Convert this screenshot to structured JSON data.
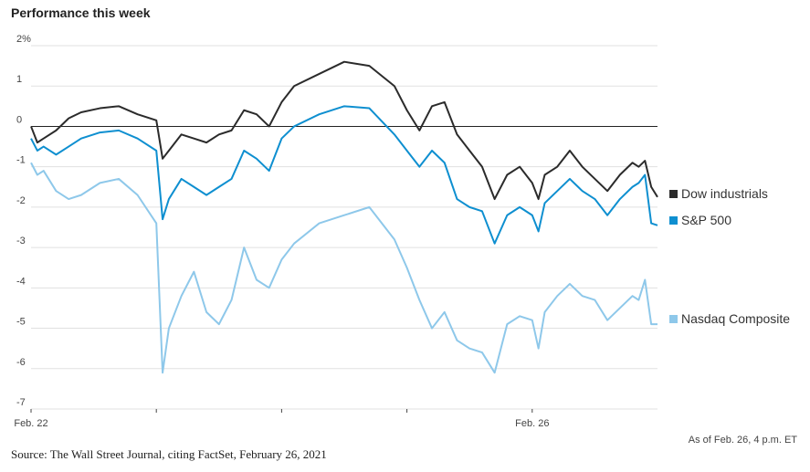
{
  "chart_data": {
    "type": "line",
    "title": "Performance this week",
    "ylim": [
      -7,
      2
    ],
    "yticks": [
      2,
      1,
      0,
      -1,
      -2,
      -3,
      -4,
      -5,
      -6,
      -7
    ],
    "ytick_labels": [
      "2%",
      "1",
      "0",
      "-1",
      "-2",
      "-3",
      "-4",
      "-5",
      "-6",
      "-7"
    ],
    "x_tick_labels": [
      "Feb. 22",
      "Feb. 26"
    ],
    "grid": true,
    "legend_placement": "right, at end of lines",
    "series": [
      {
        "name": "Dow industrials",
        "color": "#2b2b2b",
        "x": [
          0,
          0.05,
          0.1,
          0.2,
          0.3,
          0.4,
          0.55,
          0.7,
          0.85,
          1.0,
          1.05,
          1.1,
          1.2,
          1.3,
          1.4,
          1.5,
          1.6,
          1.7,
          1.8,
          1.9,
          2.0,
          2.1,
          2.3,
          2.5,
          2.7,
          2.9,
          3.0,
          3.1,
          3.2,
          3.3,
          3.4,
          3.5,
          3.6,
          3.7,
          3.8,
          3.9,
          4.0,
          4.05,
          4.1,
          4.2,
          4.3,
          4.4,
          4.5,
          4.6,
          4.7,
          4.8,
          4.85,
          4.9,
          4.95,
          5.0
        ],
        "values": [
          0.0,
          -0.4,
          -0.3,
          -0.1,
          0.2,
          0.35,
          0.45,
          0.5,
          0.3,
          0.15,
          -0.8,
          -0.6,
          -0.2,
          -0.3,
          -0.4,
          -0.2,
          -0.1,
          0.4,
          0.3,
          0.0,
          0.6,
          1.0,
          1.3,
          1.6,
          1.5,
          1.0,
          0.4,
          -0.1,
          0.5,
          0.6,
          -0.2,
          -0.6,
          -1.0,
          -1.8,
          -1.2,
          -1.0,
          -1.4,
          -1.8,
          -1.2,
          -1.0,
          -0.6,
          -1.0,
          -1.3,
          -1.6,
          -1.2,
          -0.9,
          -1.0,
          -0.85,
          -1.5,
          -1.75
        ]
      },
      {
        "name": "S&P 500",
        "color": "#0e8fd0",
        "x": [
          0,
          0.05,
          0.1,
          0.2,
          0.3,
          0.4,
          0.55,
          0.7,
          0.85,
          1.0,
          1.05,
          1.1,
          1.2,
          1.3,
          1.4,
          1.5,
          1.6,
          1.7,
          1.8,
          1.9,
          2.0,
          2.1,
          2.3,
          2.5,
          2.7,
          2.9,
          3.0,
          3.1,
          3.2,
          3.3,
          3.4,
          3.5,
          3.6,
          3.7,
          3.8,
          3.9,
          4.0,
          4.05,
          4.1,
          4.2,
          4.3,
          4.4,
          4.5,
          4.6,
          4.7,
          4.8,
          4.85,
          4.9,
          4.95,
          5.0
        ],
        "values": [
          -0.3,
          -0.6,
          -0.5,
          -0.7,
          -0.5,
          -0.3,
          -0.15,
          -0.1,
          -0.3,
          -0.6,
          -2.3,
          -1.8,
          -1.3,
          -1.5,
          -1.7,
          -1.5,
          -1.3,
          -0.6,
          -0.8,
          -1.1,
          -0.3,
          0.0,
          0.3,
          0.5,
          0.45,
          -0.2,
          -0.6,
          -1.0,
          -0.6,
          -0.9,
          -1.8,
          -2.0,
          -2.1,
          -2.9,
          -2.2,
          -2.0,
          -2.2,
          -2.6,
          -1.9,
          -1.6,
          -1.3,
          -1.6,
          -1.8,
          -2.2,
          -1.8,
          -1.5,
          -1.4,
          -1.2,
          -2.4,
          -2.45
        ]
      },
      {
        "name": "Nasdaq Composite",
        "color": "#8ec8ea",
        "x": [
          0,
          0.05,
          0.1,
          0.2,
          0.3,
          0.4,
          0.55,
          0.7,
          0.85,
          1.0,
          1.05,
          1.1,
          1.2,
          1.3,
          1.4,
          1.5,
          1.6,
          1.7,
          1.8,
          1.9,
          2.0,
          2.1,
          2.3,
          2.5,
          2.7,
          2.9,
          3.0,
          3.1,
          3.2,
          3.3,
          3.4,
          3.5,
          3.6,
          3.7,
          3.8,
          3.9,
          4.0,
          4.05,
          4.1,
          4.2,
          4.3,
          4.4,
          4.5,
          4.6,
          4.7,
          4.8,
          4.85,
          4.9,
          4.95,
          5.0
        ],
        "values": [
          -0.9,
          -1.2,
          -1.1,
          -1.6,
          -1.8,
          -1.7,
          -1.4,
          -1.3,
          -1.7,
          -2.4,
          -6.1,
          -5.0,
          -4.2,
          -3.6,
          -4.6,
          -4.9,
          -4.3,
          -3.0,
          -3.8,
          -4.0,
          -3.3,
          -2.9,
          -2.4,
          -2.2,
          -2.0,
          -2.8,
          -3.5,
          -4.3,
          -5.0,
          -4.6,
          -5.3,
          -5.5,
          -5.6,
          -6.1,
          -4.9,
          -4.7,
          -4.8,
          -5.5,
          -4.6,
          -4.2,
          -3.9,
          -4.2,
          -4.3,
          -4.8,
          -4.5,
          -4.2,
          -4.3,
          -3.8,
          -4.9,
          -4.9
        ]
      }
    ],
    "annotation": "As of Feb. 26, 4 p.m. ET",
    "source": "Source: The Wall Street Journal, citing FactSet, February 26, 2021"
  }
}
